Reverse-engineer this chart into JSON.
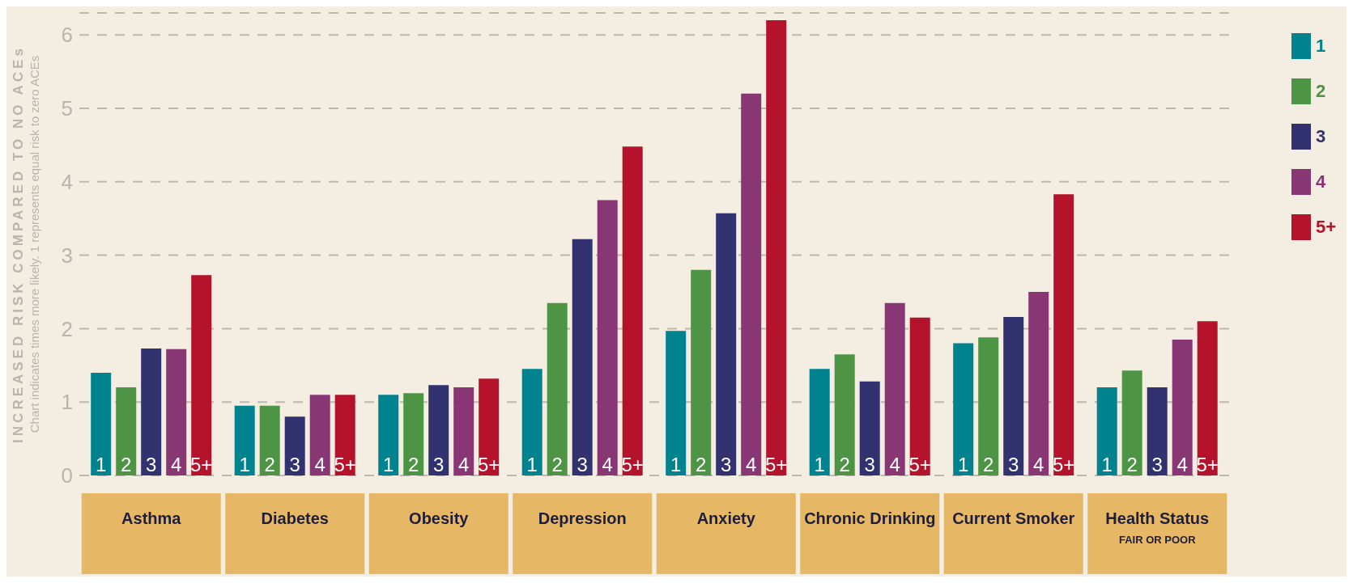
{
  "chart_data": {
    "type": "bar",
    "ylabel": "INCREASED RISK COMPARED TO NO ACEs",
    "annotations": [
      "Chart indicates times more likely. 1 represents equal risk to zero ACEs"
    ],
    "categories": [
      "Asthma",
      "Diabetes",
      "Obesity",
      "Depression",
      "Anxiety",
      "Chronic Drinking",
      "Current Smoker",
      "Health Status\nFAIR OR POOR"
    ],
    "series": [
      {
        "name": "1",
        "color": "#00828f",
        "values": [
          1.4,
          0.95,
          1.1,
          1.45,
          1.97,
          1.45,
          1.8,
          1.2
        ]
      },
      {
        "name": "2",
        "color": "#4e9445",
        "values": [
          1.2,
          0.95,
          1.12,
          2.35,
          2.8,
          1.65,
          1.88,
          1.43
        ]
      },
      {
        "name": "3",
        "color": "#323270",
        "values": [
          1.73,
          0.8,
          1.23,
          3.22,
          3.57,
          1.28,
          2.16,
          1.2
        ]
      },
      {
        "name": "4",
        "color": "#883674",
        "values": [
          1.72,
          1.1,
          1.2,
          3.75,
          5.2,
          2.35,
          2.5,
          1.85
        ]
      },
      {
        "name": "5+",
        "color": "#b5132c",
        "values": [
          2.73,
          1.1,
          1.32,
          4.48,
          6.2,
          2.15,
          3.83,
          2.1
        ]
      }
    ],
    "ylim": [
      0,
      6.3
    ],
    "yticks": [
      0,
      1,
      2,
      3,
      4,
      5,
      6
    ],
    "grid": "y",
    "legend": "top right"
  }
}
